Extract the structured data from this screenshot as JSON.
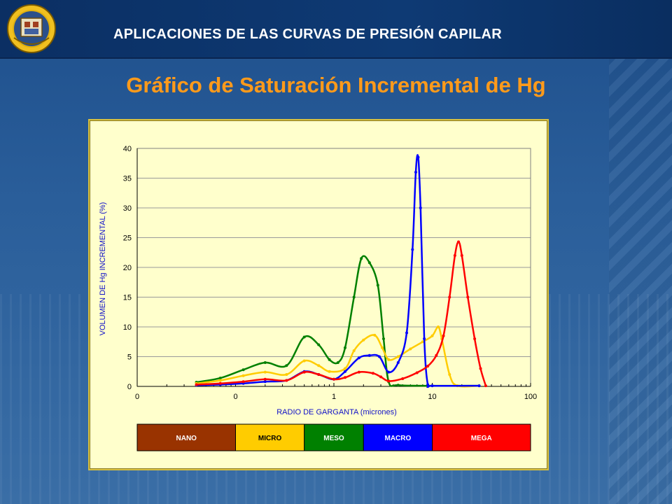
{
  "header": {
    "title": "APLICACIONES DE LAS CURVAS DE PRESIÓN CAPILAR",
    "logo_icon": "university-seal-icon"
  },
  "slide": {
    "subtitle": "Gráfico de Saturación Incremental de Hg"
  },
  "colors": {
    "nano": "#993300",
    "micro": "#ffcc00",
    "meso": "#008000",
    "macro": "#0000ff",
    "mega": "#ff0000",
    "axis_text": "#1010c8",
    "subtitle": "#ff9a1a"
  },
  "chart_data": {
    "type": "line",
    "xscale": "log",
    "xlabel": "RADIO DE GARGANTA (micrones)",
    "ylabel": "VOLUMEN DE Hg INCREMENTAL (%)",
    "x_tick_labels": [
      "0",
      "0",
      "1",
      "10",
      "100"
    ],
    "y_tick_labels": [
      "0",
      "5",
      "10",
      "15",
      "20",
      "25",
      "30",
      "35",
      "40"
    ],
    "ylim": [
      0,
      40
    ],
    "xlim": [
      0.01,
      100
    ],
    "grid": "horizontal",
    "series": [
      {
        "color": "#008000",
        "points": [
          [
            0.04,
            0.7
          ],
          [
            0.07,
            1.4
          ],
          [
            0.12,
            2.8
          ],
          [
            0.2,
            4.0
          ],
          [
            0.33,
            3.5
          ],
          [
            0.5,
            8.3
          ],
          [
            0.7,
            7.0
          ],
          [
            0.9,
            4.5
          ],
          [
            1.1,
            4.0
          ],
          [
            1.3,
            6.5
          ],
          [
            1.6,
            15.0
          ],
          [
            1.9,
            21.5
          ],
          [
            2.3,
            20.8
          ],
          [
            2.8,
            17.0
          ],
          [
            3.2,
            8.0
          ],
          [
            3.6,
            0.8
          ],
          [
            4.5,
            0.2
          ],
          [
            10,
            0.1
          ],
          [
            30,
            0.1
          ]
        ]
      },
      {
        "color": "#ffcc00",
        "points": [
          [
            0.04,
            0.5
          ],
          [
            0.07,
            1.0
          ],
          [
            0.12,
            1.8
          ],
          [
            0.2,
            2.4
          ],
          [
            0.33,
            2.0
          ],
          [
            0.5,
            4.3
          ],
          [
            0.7,
            3.5
          ],
          [
            0.9,
            2.5
          ],
          [
            1.3,
            3.0
          ],
          [
            1.6,
            6.0
          ],
          [
            2.0,
            7.8
          ],
          [
            2.6,
            8.6
          ],
          [
            3.1,
            6.5
          ],
          [
            3.6,
            4.5
          ],
          [
            4.5,
            5.0
          ],
          [
            6.0,
            6.3
          ],
          [
            8.0,
            7.5
          ],
          [
            10.0,
            8.5
          ],
          [
            11.5,
            10.0
          ],
          [
            12.5,
            8.0
          ],
          [
            15.0,
            2.0
          ],
          [
            18.0,
            0.1
          ],
          [
            30,
            0.1
          ]
        ]
      },
      {
        "color": "#0000ff",
        "points": [
          [
            0.04,
            0.2
          ],
          [
            0.07,
            0.3
          ],
          [
            0.12,
            0.5
          ],
          [
            0.2,
            0.8
          ],
          [
            0.33,
            1.0
          ],
          [
            0.5,
            2.5
          ],
          [
            0.7,
            2.0
          ],
          [
            1.0,
            1.2
          ],
          [
            1.3,
            2.5
          ],
          [
            1.8,
            4.8
          ],
          [
            2.3,
            5.2
          ],
          [
            2.9,
            5.0
          ],
          [
            3.6,
            2.4
          ],
          [
            4.5,
            4.0
          ],
          [
            5.5,
            9.0
          ],
          [
            6.3,
            23.0
          ],
          [
            6.8,
            36.0
          ],
          [
            7.2,
            38.5
          ],
          [
            7.6,
            30.0
          ],
          [
            8.3,
            8.0
          ],
          [
            9.0,
            0.3
          ],
          [
            10,
            0.1
          ],
          [
            30,
            0.1
          ]
        ]
      },
      {
        "color": "#ff0000",
        "points": [
          [
            0.04,
            0.3
          ],
          [
            0.07,
            0.5
          ],
          [
            0.12,
            0.8
          ],
          [
            0.2,
            1.2
          ],
          [
            0.33,
            1.0
          ],
          [
            0.5,
            2.4
          ],
          [
            0.7,
            2.0
          ],
          [
            1.0,
            1.2
          ],
          [
            1.3,
            1.5
          ],
          [
            1.8,
            2.4
          ],
          [
            2.5,
            2.2
          ],
          [
            3.0,
            1.6
          ],
          [
            3.6,
            0.9
          ],
          [
            5.0,
            1.3
          ],
          [
            7.0,
            2.3
          ],
          [
            9.0,
            3.4
          ],
          [
            11.0,
            5.2
          ],
          [
            13.0,
            8.5
          ],
          [
            15.0,
            15.0
          ],
          [
            17.0,
            22.0
          ],
          [
            18.5,
            24.3
          ],
          [
            20.0,
            22.0
          ],
          [
            23.0,
            15.0
          ],
          [
            27.0,
            8.0
          ],
          [
            31.0,
            3.0
          ],
          [
            35.0,
            0.1
          ]
        ]
      }
    ],
    "bands": [
      {
        "label": "NANO",
        "from": 0.01,
        "to": 0.1,
        "color": "#993300"
      },
      {
        "label": "MICRO",
        "from": 0.1,
        "to": 0.5,
        "color": "#ffcc00"
      },
      {
        "label": "MESO",
        "from": 0.5,
        "to": 2.0,
        "color": "#008000"
      },
      {
        "label": "MACRO",
        "from": 2.0,
        "to": 10.0,
        "color": "#0000ff"
      },
      {
        "label": "MEGA",
        "from": 10.0,
        "to": 100.0,
        "color": "#ff0000"
      }
    ]
  }
}
